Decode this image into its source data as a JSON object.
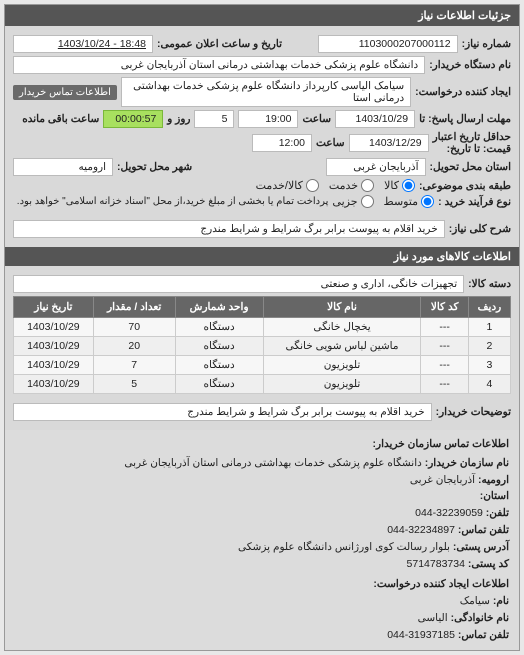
{
  "header": {
    "title": "جزئیات اطلاعات نیاز"
  },
  "fields": {
    "request_no_lbl": "شماره نیاز:",
    "request_no": "1103000207000112",
    "public_announce_lbl": "تاریخ و ساعت اعلان عمومی:",
    "public_announce": "18:48 - 1403/10/24",
    "buyer_org_lbl": "نام دستگاه خریدار:",
    "buyer_org": "دانشگاه علوم پزشکی خدمات بهداشتی درمانی استان آذربایجان غربی",
    "requester_lbl": "ایجاد کننده درخواست:",
    "requester": "سیامک الیاسی کارپرداز دانشگاه علوم پزشکی خدمات بهداشتی درمانی استا",
    "contact_btn": "اطلاعات تماس خریدار",
    "deadline_send_lbl": "مهلت ارسال پاسخ: تا",
    "deadline_send_date": "1403/10/29",
    "time_lbl": "ساعت",
    "deadline_send_time": "19:00",
    "days_lbl": "روز و",
    "days_remain": "5",
    "remain_lbl": "ساعت باقی مانده",
    "remain_time": "00:00:57",
    "validity_lbl": "حداقل تاریخ اعتبار",
    "price_until_lbl": "قیمت: تا تاریخ:",
    "validity_date": "1403/12/29",
    "validity_time": "12:00",
    "province_lbl": "استان محل تحویل:",
    "province": "آذربایجان غربی",
    "city_lbl": "شهر محل تحویل:",
    "city": "ارومیه",
    "budget_lbl": "طبقه بندی موضوعی:",
    "budget_opts": [
      "کالا",
      "خدمت",
      "کالا/خدمت"
    ],
    "process_lbl": "نوع فرآیند خرید :",
    "process_opts": [
      "متوسط",
      "جزیی"
    ],
    "process_note": "پرداخت تمام یا بخشی از مبلغ خرید،از محل \"اسناد خزانه اسلامی\" خواهد بود.",
    "desc_lbl": "شرح کلی نیاز:",
    "desc": "خرید اقلام به پیوست برابر برگ شرایط و شرایط مندرج"
  },
  "goods_section": {
    "title": "اطلاعات کالاهای مورد نیاز",
    "category_lbl": "دسته کالا:",
    "category": "تجهیزات خانگی، اداری و صنعتی"
  },
  "table": {
    "cols": [
      "ردیف",
      "کد کالا",
      "نام کالا",
      "واحد شمارش",
      "تعداد / مقدار",
      "تاریخ نیاز"
    ],
    "rows": [
      [
        "1",
        "---",
        "یخچال خانگی",
        "دستگاه",
        "70",
        "1403/10/29"
      ],
      [
        "2",
        "---",
        "ماشین لباس شویی خانگی",
        "دستگاه",
        "20",
        "1403/10/29"
      ],
      [
        "3",
        "---",
        "تلویزیون",
        "دستگاه",
        "7",
        "1403/10/29"
      ],
      [
        "4",
        "---",
        "تلویزیون",
        "دستگاه",
        "5",
        "1403/10/29"
      ]
    ]
  },
  "buyer_note": {
    "lbl": "توضیحات خریدار:",
    "val": "خرید اقلام به پیوست برابر برگ شرایط و شرایط مندرج"
  },
  "contact": {
    "title": "اطلاعات تماس سازمان خریدار:",
    "org_lbl": "نام سازمان خریدار:",
    "org": "دانشگاه علوم پزشکی خدمات بهداشتی درمانی استان آذربایجان غربی",
    "city_lbl": "ارومیه:",
    "city": "آذربایجان غربی",
    "province_lbl": "استان:",
    "phone_lbl": "تلفن:",
    "phone": "32239059-044",
    "fax_lbl": "تلفن تماس:",
    "fax": "32234897-044",
    "addr_lbl": "آدرس پستی:",
    "addr": "بلوار رسالت کوی اورژانس دانشگاه علوم پزشکی",
    "post_lbl": "کد پستی:",
    "post": "5714783734",
    "creator_title": "اطلاعات ایجاد کننده درخواست:",
    "name_lbl": "نام:",
    "name": "سیامک",
    "family_lbl": "نام خانوادگی:",
    "family": "الیاسی",
    "creator_phone_lbl": "تلفن تماس:",
    "creator_phone": "31937185-044"
  }
}
